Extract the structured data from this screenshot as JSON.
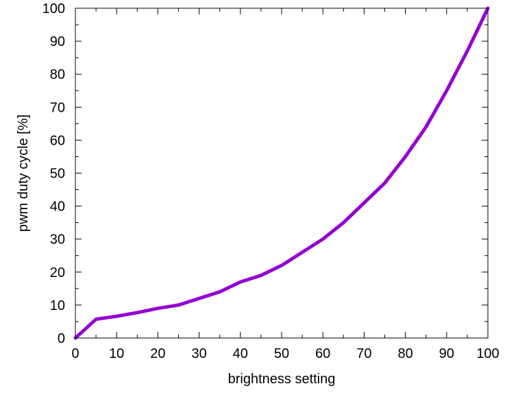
{
  "chart_data": {
    "type": "line",
    "title": "",
    "xlabel": "brightness setting",
    "ylabel": "pwm duty cycle [%]",
    "xlim": [
      0,
      100
    ],
    "ylim": [
      0,
      100
    ],
    "x_ticks": [
      "0",
      "10",
      "20",
      "30",
      "40",
      "50",
      "60",
      "70",
      "80",
      "90",
      "100"
    ],
    "y_ticks": [
      "0",
      "10",
      "20",
      "30",
      "40",
      "50",
      "60",
      "70",
      "80",
      "90",
      "100"
    ],
    "grid": false,
    "legend": "none",
    "series": [
      {
        "color": "#9400d3",
        "x": [
          0,
          5,
          10,
          15,
          20,
          25,
          30,
          35,
          40,
          45,
          50,
          55,
          60,
          65,
          70,
          75,
          80,
          85,
          90,
          95,
          100
        ],
        "y": [
          0,
          5.7,
          6.6,
          7.7,
          9,
          10,
          12,
          14,
          17,
          19,
          22,
          26,
          30,
          35,
          41,
          47,
          55,
          64,
          75,
          87,
          100
        ]
      }
    ]
  }
}
